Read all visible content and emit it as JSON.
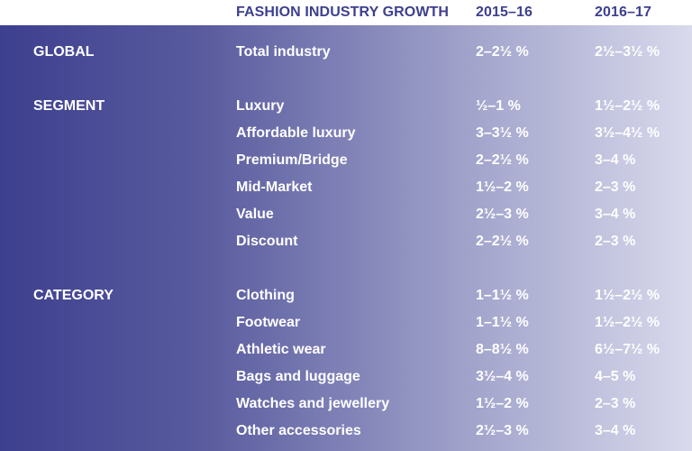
{
  "header": {
    "title": "FASHION INDUSTRY GROWTH",
    "col1": "2015–16",
    "col2": "2016–17"
  },
  "sections": [
    {
      "name": "GLOBAL",
      "rows": [
        {
          "label": "Total industry",
          "v1": "2–2½ %",
          "v2": "2½–3½ %"
        }
      ]
    },
    {
      "name": "SEGMENT",
      "rows": [
        {
          "label": "Luxury",
          "v1": "½–1 %",
          "v2": "1½–2½ %"
        },
        {
          "label": "Affordable luxury",
          "v1": "3–3½ %",
          "v2": "3½–4½ %"
        },
        {
          "label": "Premium/Bridge",
          "v1": "2–2½ %",
          "v2": "3–4 %"
        },
        {
          "label": "Mid-Market",
          "v1": "1½–2 %",
          "v2": "2–3 %"
        },
        {
          "label": "Value",
          "v1": "2½–3 %",
          "v2": "3–4 %"
        },
        {
          "label": "Discount",
          "v1": "2–2½ %",
          "v2": "2–3 %"
        }
      ]
    },
    {
      "name": "CATEGORY",
      "rows": [
        {
          "label": "Clothing",
          "v1": "1–1½ %",
          "v2": "1½–2½ %"
        },
        {
          "label": "Footwear",
          "v1": "1–1½ %",
          "v2": "1½–2½ %"
        },
        {
          "label": "Athletic wear",
          "v1": "8–8½ %",
          "v2": "6½–7½ %"
        },
        {
          "label": "Bags and luggage",
          "v1": "3½–4 %",
          "v2": "4–5 %"
        },
        {
          "label": "Watches and jewellery",
          "v1": "1½–2 %",
          "v2": "2–3 %"
        },
        {
          "label": "Other accessories",
          "v1": "2½–3 %",
          "v2": "3–4 %"
        }
      ]
    }
  ],
  "colors": {
    "header_text": "#3d3f8f",
    "gradient_left": "#3d3f8f",
    "gradient_right": "#d9daec",
    "body_text": "#ffffff"
  },
  "chart_data": {
    "type": "table",
    "title": "FASHION INDUSTRY GROWTH",
    "columns": [
      "2015–16",
      "2016–17"
    ],
    "rows": [
      {
        "group": "GLOBAL",
        "label": "Total industry",
        "values": [
          "2–2½ %",
          "2½–3½ %"
        ]
      },
      {
        "group": "SEGMENT",
        "label": "Luxury",
        "values": [
          "½–1 %",
          "1½–2½ %"
        ]
      },
      {
        "group": "SEGMENT",
        "label": "Affordable luxury",
        "values": [
          "3–3½ %",
          "3½–4½ %"
        ]
      },
      {
        "group": "SEGMENT",
        "label": "Premium/Bridge",
        "values": [
          "2–2½ %",
          "3–4 %"
        ]
      },
      {
        "group": "SEGMENT",
        "label": "Mid-Market",
        "values": [
          "1½–2 %",
          "2–3 %"
        ]
      },
      {
        "group": "SEGMENT",
        "label": "Value",
        "values": [
          "2½–3 %",
          "3–4 %"
        ]
      },
      {
        "group": "SEGMENT",
        "label": "Discount",
        "values": [
          "2–2½ %",
          "2–3 %"
        ]
      },
      {
        "group": "CATEGORY",
        "label": "Clothing",
        "values": [
          "1–1½ %",
          "1½–2½ %"
        ]
      },
      {
        "group": "CATEGORY",
        "label": "Footwear",
        "values": [
          "1–1½ %",
          "1½–2½ %"
        ]
      },
      {
        "group": "CATEGORY",
        "label": "Athletic wear",
        "values": [
          "8–8½ %",
          "6½–7½ %"
        ]
      },
      {
        "group": "CATEGORY",
        "label": "Bags and luggage",
        "values": [
          "3½–4 %",
          "4–5 %"
        ]
      },
      {
        "group": "CATEGORY",
        "label": "Watches and jewellery",
        "values": [
          "1½–2 %",
          "2–3 %"
        ]
      },
      {
        "group": "CATEGORY",
        "label": "Other accessories",
        "values": [
          "2½–3 %",
          "3–4 %"
        ]
      }
    ]
  }
}
